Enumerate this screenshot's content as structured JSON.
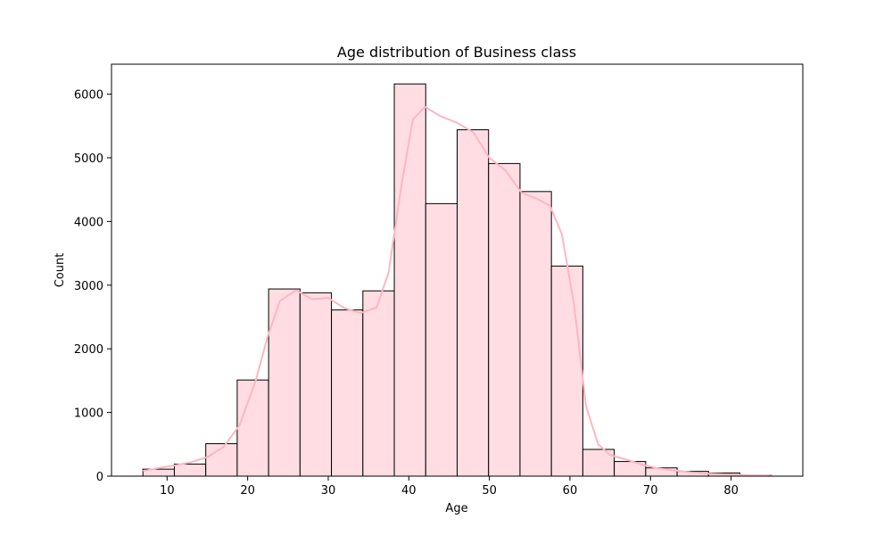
{
  "chart_data": {
    "type": "bar",
    "title": "Age distribution of Business class",
    "xlabel": "Age",
    "ylabel": "Count",
    "xlim": [
      3.1,
      88.9
    ],
    "ylim": [
      0,
      6470
    ],
    "xticks": [
      10,
      20,
      30,
      40,
      50,
      60,
      70,
      80
    ],
    "yticks": [
      0,
      1000,
      2000,
      3000,
      4000,
      5000,
      6000
    ],
    "grid": false,
    "legend": "none",
    "bar_color": "#ffdde3",
    "edge_color": "#000000",
    "kde_color": "#ffb6c1",
    "bins": [
      {
        "x0": 7.0,
        "x1": 10.9,
        "count": 110
      },
      {
        "x0": 10.9,
        "x1": 14.8,
        "count": 190
      },
      {
        "x0": 14.8,
        "x1": 18.7,
        "count": 510
      },
      {
        "x0": 18.7,
        "x1": 22.6,
        "count": 1510
      },
      {
        "x0": 22.6,
        "x1": 26.5,
        "count": 2940
      },
      {
        "x0": 26.5,
        "x1": 30.4,
        "count": 2880
      },
      {
        "x0": 30.4,
        "x1": 34.3,
        "count": 2610
      },
      {
        "x0": 34.3,
        "x1": 38.2,
        "count": 2910
      },
      {
        "x0": 38.2,
        "x1": 42.1,
        "count": 6160
      },
      {
        "x0": 42.1,
        "x1": 46.0,
        "count": 4280
      },
      {
        "x0": 46.0,
        "x1": 49.9,
        "count": 5440
      },
      {
        "x0": 49.9,
        "x1": 53.8,
        "count": 4910
      },
      {
        "x0": 53.8,
        "x1": 57.7,
        "count": 4470
      },
      {
        "x0": 57.7,
        "x1": 61.6,
        "count": 3300
      },
      {
        "x0": 61.6,
        "x1": 65.5,
        "count": 420
      },
      {
        "x0": 65.5,
        "x1": 69.4,
        "count": 230
      },
      {
        "x0": 69.4,
        "x1": 73.3,
        "count": 130
      },
      {
        "x0": 73.3,
        "x1": 77.2,
        "count": 75
      },
      {
        "x0": 77.2,
        "x1": 81.1,
        "count": 50
      },
      {
        "x0": 81.1,
        "x1": 85.0,
        "count": 15
      }
    ],
    "kde": [
      {
        "x": 7,
        "y": 80
      },
      {
        "x": 9,
        "y": 130
      },
      {
        "x": 11,
        "y": 170
      },
      {
        "x": 13,
        "y": 220
      },
      {
        "x": 15,
        "y": 300
      },
      {
        "x": 17,
        "y": 460
      },
      {
        "x": 19,
        "y": 800
      },
      {
        "x": 21,
        "y": 1500
      },
      {
        "x": 22.5,
        "y": 2200
      },
      {
        "x": 24,
        "y": 2750
      },
      {
        "x": 26,
        "y": 2920
      },
      {
        "x": 28,
        "y": 2780
      },
      {
        "x": 30,
        "y": 2800
      },
      {
        "x": 32,
        "y": 2640
      },
      {
        "x": 34,
        "y": 2560
      },
      {
        "x": 36,
        "y": 2650
      },
      {
        "x": 37.5,
        "y": 3200
      },
      {
        "x": 39,
        "y": 4500
      },
      {
        "x": 40.5,
        "y": 5600
      },
      {
        "x": 42,
        "y": 5800
      },
      {
        "x": 44,
        "y": 5650
      },
      {
        "x": 46,
        "y": 5550
      },
      {
        "x": 48,
        "y": 5400
      },
      {
        "x": 50,
        "y": 5000
      },
      {
        "x": 52,
        "y": 4800
      },
      {
        "x": 54,
        "y": 4450
      },
      {
        "x": 56,
        "y": 4350
      },
      {
        "x": 57.5,
        "y": 4250
      },
      {
        "x": 59,
        "y": 3800
      },
      {
        "x": 60.5,
        "y": 2700
      },
      {
        "x": 62,
        "y": 1100
      },
      {
        "x": 63.5,
        "y": 500
      },
      {
        "x": 65,
        "y": 330
      },
      {
        "x": 67,
        "y": 260
      },
      {
        "x": 69,
        "y": 180
      },
      {
        "x": 71,
        "y": 120
      },
      {
        "x": 73,
        "y": 90
      },
      {
        "x": 75,
        "y": 60
      },
      {
        "x": 77,
        "y": 40
      },
      {
        "x": 79,
        "y": 30
      },
      {
        "x": 81,
        "y": 20
      },
      {
        "x": 83,
        "y": 10
      },
      {
        "x": 85,
        "y": 5
      }
    ]
  }
}
